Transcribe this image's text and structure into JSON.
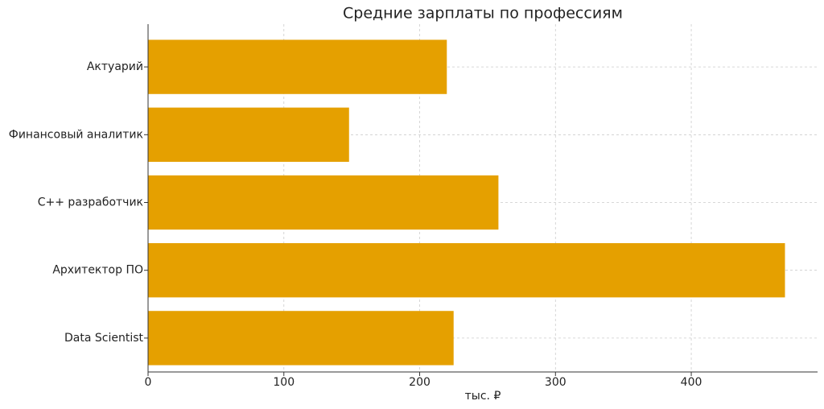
{
  "chart_data": {
    "type": "barh",
    "title": "Средние зарплаты по профессиям",
    "xlabel": "тыс. ₽",
    "categories": [
      "Актуарий",
      "Финансовый аналитик",
      "C++ разработчик",
      "Архитектор ПО",
      "Data Scientist"
    ],
    "values": [
      220,
      148,
      258,
      469,
      225
    ],
    "color": "#e5a000",
    "xlim": [
      0,
      493
    ],
    "xticks": [
      0,
      100,
      200,
      300,
      400
    ],
    "grid": true
  }
}
